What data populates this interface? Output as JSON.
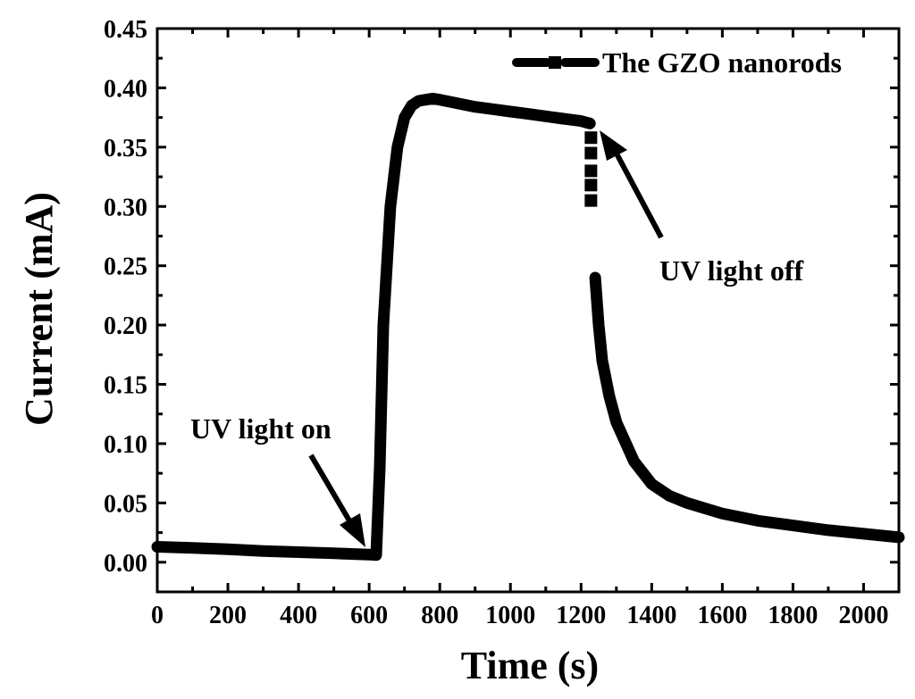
{
  "chart_data": {
    "type": "line",
    "title": "",
    "xlabel": "Time (s)",
    "ylabel": "Current (mA)",
    "xlim": [
      0,
      2100
    ],
    "ylim": [
      -0.025,
      0.45
    ],
    "grid": false,
    "legend_position": "top-right",
    "x_ticks": [
      0,
      200,
      400,
      600,
      800,
      1000,
      1200,
      1400,
      1600,
      1800,
      2000
    ],
    "x_tick_labels": [
      "0",
      "200",
      "400",
      "600",
      "800",
      "1000",
      "1200",
      "1400",
      "1600",
      "1800",
      "2000"
    ],
    "y_ticks": [
      0.0,
      0.05,
      0.1,
      0.15,
      0.2,
      0.25,
      0.3,
      0.35,
      0.4,
      0.45
    ],
    "y_tick_labels": [
      "0.00",
      "0.05",
      "0.10",
      "0.15",
      "0.20",
      "0.25",
      "0.30",
      "0.35",
      "0.40",
      "0.45"
    ],
    "series": [
      {
        "name": "The GZO nanorods",
        "color": "#000000",
        "x": [
          0,
          100,
          200,
          300,
          400,
          500,
          600,
          620,
          630,
          640,
          660,
          680,
          700,
          720,
          740,
          760,
          780,
          800,
          850,
          900,
          950,
          1000,
          1050,
          1100,
          1150,
          1200,
          1225,
          1228,
          1232,
          1240,
          1250,
          1260,
          1280,
          1300,
          1350,
          1400,
          1450,
          1500,
          1600,
          1700,
          1800,
          1900,
          2000,
          2100
        ],
        "y": [
          0.013,
          0.012,
          0.011,
          0.0095,
          0.0085,
          0.0075,
          0.0065,
          0.006,
          0.08,
          0.2,
          0.3,
          0.35,
          0.375,
          0.385,
          0.389,
          0.39,
          0.391,
          0.39,
          0.387,
          0.384,
          0.382,
          0.38,
          0.378,
          0.376,
          0.374,
          0.372,
          0.37,
          0.33,
          0.285,
          0.24,
          0.2,
          0.17,
          0.14,
          0.118,
          0.085,
          0.066,
          0.056,
          0.05,
          0.041,
          0.035,
          0.031,
          0.027,
          0.024,
          0.021
        ]
      }
    ],
    "annotations": [
      {
        "text": "UV light on",
        "x": 610,
        "y": 0.008
      },
      {
        "text": "UV light off",
        "x": 1240,
        "y": 0.365
      }
    ]
  }
}
